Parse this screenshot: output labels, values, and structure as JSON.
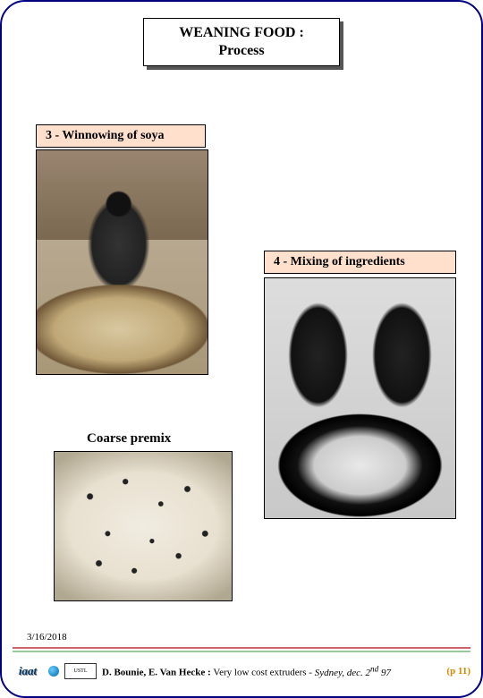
{
  "title": {
    "line1": "WEANING FOOD :",
    "line2": "Process"
  },
  "captions": {
    "step3": "3 - Winnowing of soya",
    "step4": "4 - Mixing of ingredients",
    "premix": "Coarse premix"
  },
  "date": "3/16/2018",
  "footer": {
    "authors": "D. Bounie, E. Van Hecke : ",
    "talk": "Very low cost extruders - ",
    "venue_italic": "Sydney, dec. 2",
    "venue_sup": "nd",
    "venue_year": " 97",
    "page_label": "(p 11)"
  },
  "colors": {
    "caption_bg": "#ffe0cc",
    "page_border": "#000080",
    "page_num": "#d48800",
    "hr_red": "#cc6666",
    "hr_green": "#99cc99"
  },
  "logos": {
    "iaat": "iaat",
    "ustl": "USTL"
  }
}
